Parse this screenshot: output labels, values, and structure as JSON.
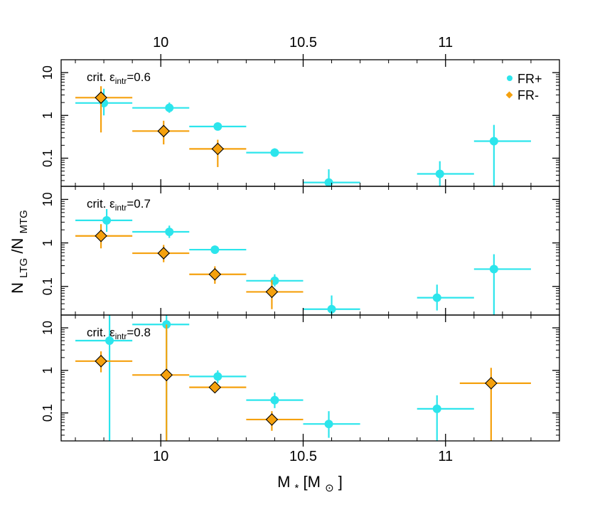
{
  "chart_data": {
    "type": "scatter",
    "x_axis_top_ticks": [
      "10",
      "10.5",
      "11"
    ],
    "x_axis_bottom_ticks": [
      "10",
      "10.5",
      "11"
    ],
    "xlabel": {
      "main": "M",
      "sub_star": "*",
      "unit_open": " [M",
      "unit_sub": "⊙",
      "unit_close": "]"
    },
    "ylabel": {
      "n1": "N",
      "n1_sub": "LTG",
      "slash": "/N",
      "n2_sub": "MTG"
    },
    "y_ticks": [
      "0.1",
      "1",
      "10"
    ],
    "xlim": [
      9.65,
      11.4
    ],
    "ylim": [
      0.022,
      20
    ],
    "colors": {
      "fr_plus": "#2ce5ec",
      "fr_minus": "#f5a10e"
    },
    "legend": {
      "fr_plus": "FR+",
      "fr_minus": "FR-",
      "placement": "top-right of top panel"
    },
    "panels": [
      {
        "label_prefix": "crit. ε",
        "label_sub": "intr",
        "label_value": "=0.6",
        "fr_plus": [
          {
            "x": 9.8,
            "xlo": 9.7,
            "xhi": 9.9,
            "y": 1.95,
            "ylo": 1.0,
            "yhi": 4.2
          },
          {
            "x": 10.03,
            "xlo": 9.9,
            "xhi": 10.1,
            "y": 1.5,
            "ylo": 1.15,
            "yhi": 2.0
          },
          {
            "x": 10.2,
            "xlo": 10.1,
            "xhi": 10.3,
            "y": 0.55,
            "ylo": 0.47,
            "yhi": 0.64
          },
          {
            "x": 10.4,
            "xlo": 10.3,
            "xhi": 10.5,
            "y": 0.135,
            "ylo": 0.108,
            "yhi": 0.17
          },
          {
            "x": 10.59,
            "xlo": 10.5,
            "xhi": 10.7,
            "y": 0.027,
            "ylo": 0.022,
            "yhi": 0.055
          },
          {
            "x": 10.98,
            "xlo": 10.9,
            "xhi": 11.1,
            "y": 0.043,
            "ylo": 0.022,
            "yhi": 0.085
          },
          {
            "x": 11.17,
            "xlo": 11.1,
            "xhi": 11.3,
            "y": 0.25,
            "ylo": 0.022,
            "yhi": 0.6
          }
        ],
        "fr_minus": [
          {
            "x": 9.79,
            "xlo": 9.7,
            "xhi": 9.9,
            "y": 2.6,
            "ylo": 0.4,
            "yhi": 4.8
          },
          {
            "x": 10.01,
            "xlo": 9.9,
            "xhi": 10.1,
            "y": 0.43,
            "ylo": 0.21,
            "yhi": 0.75
          },
          {
            "x": 10.2,
            "xlo": 10.1,
            "xhi": 10.3,
            "y": 0.165,
            "ylo": 0.062,
            "yhi": 0.27
          }
        ]
      },
      {
        "label_prefix": "crit. ε",
        "label_sub": "intr",
        "label_value": "=0.7",
        "fr_plus": [
          {
            "x": 9.81,
            "xlo": 9.7,
            "xhi": 9.9,
            "y": 3.3,
            "ylo": 1.8,
            "yhi": 6.0
          },
          {
            "x": 10.03,
            "xlo": 9.9,
            "xhi": 10.1,
            "y": 1.8,
            "ylo": 1.3,
            "yhi": 2.5
          },
          {
            "x": 10.19,
            "xlo": 10.1,
            "xhi": 10.3,
            "y": 0.7,
            "ylo": 0.57,
            "yhi": 0.85
          },
          {
            "x": 10.4,
            "xlo": 10.3,
            "xhi": 10.5,
            "y": 0.135,
            "ylo": 0.1,
            "yhi": 0.19
          },
          {
            "x": 10.6,
            "xlo": 10.5,
            "xhi": 10.7,
            "y": 0.03,
            "ylo": 0.022,
            "yhi": 0.062
          },
          {
            "x": 10.97,
            "xlo": 10.9,
            "xhi": 11.1,
            "y": 0.055,
            "ylo": 0.028,
            "yhi": 0.11
          },
          {
            "x": 11.17,
            "xlo": 11.1,
            "xhi": 11.3,
            "y": 0.25,
            "ylo": 0.022,
            "yhi": 0.55
          }
        ],
        "fr_minus": [
          {
            "x": 9.79,
            "xlo": 9.7,
            "xhi": 9.9,
            "y": 1.45,
            "ylo": 0.75,
            "yhi": 2.7
          },
          {
            "x": 10.01,
            "xlo": 9.9,
            "xhi": 10.1,
            "y": 0.58,
            "ylo": 0.36,
            "yhi": 0.9
          },
          {
            "x": 10.19,
            "xlo": 10.1,
            "xhi": 10.3,
            "y": 0.19,
            "ylo": 0.115,
            "yhi": 0.29
          },
          {
            "x": 10.39,
            "xlo": 10.3,
            "xhi": 10.5,
            "y": 0.075,
            "ylo": 0.03,
            "yhi": 0.14
          }
        ]
      },
      {
        "label_prefix": "crit. ε",
        "label_sub": "intr",
        "label_value": "=0.8",
        "fr_plus": [
          {
            "x": 9.82,
            "xlo": 9.7,
            "xhi": 9.9,
            "y": 5.0,
            "ylo": 0.022,
            "yhi": 20
          },
          {
            "x": 10.02,
            "xlo": 9.9,
            "xhi": 10.1,
            "y": 12,
            "ylo": 0.022,
            "yhi": 20
          },
          {
            "x": 10.2,
            "xlo": 10.1,
            "xhi": 10.3,
            "y": 0.72,
            "ylo": 0.5,
            "yhi": 1.0
          },
          {
            "x": 10.4,
            "xlo": 10.3,
            "xhi": 10.5,
            "y": 0.2,
            "ylo": 0.13,
            "yhi": 0.3
          },
          {
            "x": 10.59,
            "xlo": 10.5,
            "xhi": 10.7,
            "y": 0.055,
            "ylo": 0.026,
            "yhi": 0.11
          },
          {
            "x": 10.97,
            "xlo": 10.9,
            "xhi": 11.1,
            "y": 0.125,
            "ylo": 0.022,
            "yhi": 0.26
          }
        ],
        "fr_minus": [
          {
            "x": 9.79,
            "xlo": 9.7,
            "xhi": 9.9,
            "y": 1.65,
            "ylo": 0.9,
            "yhi": 2.8
          },
          {
            "x": 10.02,
            "xlo": 9.9,
            "xhi": 10.1,
            "y": 0.78,
            "ylo": 0.022,
            "yhi": 12
          },
          {
            "x": 10.19,
            "xlo": 10.1,
            "xhi": 10.3,
            "y": 0.4,
            "ylo": 0.3,
            "yhi": 0.5
          },
          {
            "x": 10.39,
            "xlo": 10.3,
            "xhi": 10.5,
            "y": 0.07,
            "ylo": 0.038,
            "yhi": 0.11
          },
          {
            "x": 11.16,
            "xlo": 11.05,
            "xhi": 11.3,
            "y": 0.5,
            "ylo": 0.022,
            "yhi": 1.15
          }
        ]
      }
    ]
  }
}
